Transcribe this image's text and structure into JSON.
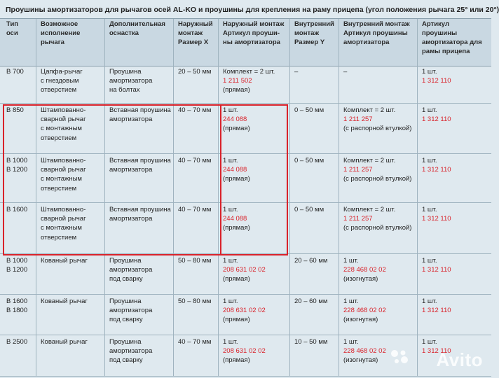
{
  "title": "Проушины амортизаторов для рычагов осей AL-KO и проушины для крепления на раму прицепа (угол положения рычага 25° или 20°)",
  "headers": [
    [
      "Тип",
      "оси"
    ],
    [
      "Возможное",
      "исполнение",
      "рычага"
    ],
    [
      "Дополнительная",
      "оснастка"
    ],
    [
      "Наружный",
      "монтаж",
      "Размер X"
    ],
    [
      "Наружный монтаж",
      "Артикул проуши-",
      "ны амортизатора"
    ],
    [
      "Внутренний",
      "монтаж",
      "Размер Y"
    ],
    [
      "Внутренний монтаж",
      "Артикул проушины",
      "амортизатора"
    ],
    [
      "Артикул",
      "проушины",
      "амортизатора для",
      "рамы прицепа"
    ]
  ],
  "rows": [
    {
      "type": [
        "B 700"
      ],
      "lever": [
        "Цапфа-рычаг",
        "с гнездовым",
        "отверстием"
      ],
      "extra": [
        "Проушина",
        "амортизатора",
        "на болтах"
      ],
      "x": "20 – 50 мм",
      "outer": {
        "pre": "Комплект = 2 шт.",
        "code": "1 211 502",
        "post": "(прямая)"
      },
      "y": "–",
      "inner": {
        "pre": "–",
        "code": "",
        "post": ""
      },
      "frame": {
        "pre": "1 шт.",
        "code": "1 312 110"
      }
    },
    {
      "type": [
        "B 850"
      ],
      "lever": [
        "Штампованно-",
        "сварной рычаг",
        "с монтажным",
        "отверстием"
      ],
      "extra": [
        "Вставная проушина",
        "амортизатора"
      ],
      "x": "40 – 70 мм",
      "outer": {
        "pre": "1 шт.",
        "code": "244 088",
        "post": "(прямая)"
      },
      "y": "0 – 50 мм",
      "inner": {
        "pre": "Комплект = 2 шт.",
        "code": "1 211 257",
        "post": "(с распорной втулкой)"
      },
      "frame": {
        "pre": "1 шт.",
        "code": "1 312 110"
      }
    },
    {
      "type": [
        "B 1000",
        "B 1200"
      ],
      "lever": [
        "Штампованно-",
        "сварной рычаг",
        "с монтажным",
        "отверстием"
      ],
      "extra": [
        "Вставная проушина",
        "амортизатора"
      ],
      "x": "40 – 70 мм",
      "outer": {
        "pre": "1 шт.",
        "code": "244 088",
        "post": "(прямая)"
      },
      "y": "0 – 50 мм",
      "inner": {
        "pre": "Комплект = 2 шт.",
        "code": "1 211 257",
        "post": "(с распорной втулкой)"
      },
      "frame": {
        "pre": "1 шт.",
        "code": "1 312 110"
      }
    },
    {
      "type": [
        "B 1600"
      ],
      "lever": [
        "Штампованно-",
        "сварной рычаг",
        "с монтажным",
        "отверстием"
      ],
      "extra": [
        "Вставная проушина",
        "амортизатора"
      ],
      "x": "40 – 70 мм",
      "outer": {
        "pre": "1 шт.",
        "code": "244 088",
        "post": "(прямая)"
      },
      "y": "0 – 50 мм",
      "inner": {
        "pre": "Комплект = 2 шт.",
        "code": "1 211 257",
        "post": "(с распорной втулкой)"
      },
      "frame": {
        "pre": "1 шт.",
        "code": "1 312 110"
      }
    },
    {
      "type": [
        "B 1000",
        "B 1200"
      ],
      "lever": [
        "Кованый рычаг"
      ],
      "extra": [
        "Проушина",
        "амортизатора",
        "под сварку"
      ],
      "x": "50 – 80 мм",
      "outer": {
        "pre": "1 шт.",
        "code": "208 631 02 02",
        "post": "(прямая)"
      },
      "y": "20 – 60 мм",
      "inner": {
        "pre": "1 шт.",
        "code": "228 468 02 02",
        "post": "(изогнутая)"
      },
      "frame": {
        "pre": "1 шт.",
        "code": "1 312 110"
      }
    },
    {
      "type": [
        "B 1600",
        "B 1800"
      ],
      "lever": [
        "Кованый рычаг"
      ],
      "extra": [
        "Проушина",
        "амортизатора",
        "под сварку"
      ],
      "x": "50 – 80 мм",
      "outer": {
        "pre": "1 шт.",
        "code": "208 631 02 02",
        "post": "(прямая)"
      },
      "y": "20 – 60 мм",
      "inner": {
        "pre": "1 шт.",
        "code": "228 468 02 02",
        "post": "(изогнутая)"
      },
      "frame": {
        "pre": "1 шт.",
        "code": "1 312 110"
      }
    },
    {
      "type": [
        "B 2500"
      ],
      "lever": [
        "Кованый рычаг"
      ],
      "extra": [
        "Проушина",
        "амортизатора",
        "под сварку"
      ],
      "x": "40 – 70 мм",
      "outer": {
        "pre": "1 шт.",
        "code": "208 631 02 02",
        "post": "(прямая)"
      },
      "y": "10 – 50 мм",
      "inner": {
        "pre": "1 шт.",
        "code": "228 468 02 02",
        "post": "(изогнутая)"
      },
      "frame": {
        "pre": "1 шт.",
        "code": "1 312 110"
      }
    }
  ],
  "watermark": "Avito",
  "colors": {
    "accent": "#d9222a",
    "background": "#dfe9ef",
    "header": "#c9d8e2"
  }
}
